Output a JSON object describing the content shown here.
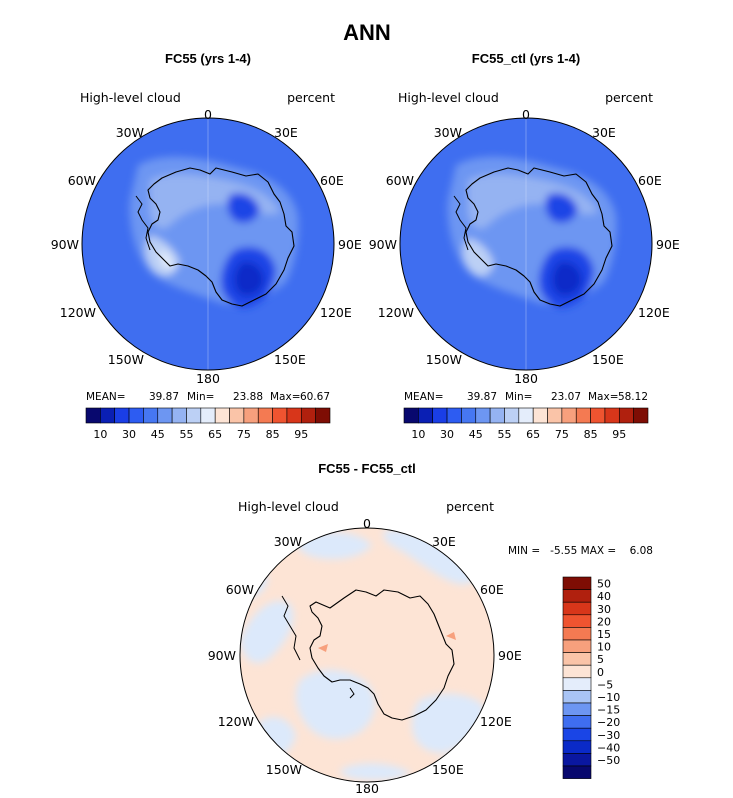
{
  "figure_title": "ANN",
  "chart_data": [
    {
      "type": "contour-map",
      "projection": "south-polar-stereographic",
      "title": "FC55 (yrs 1-4)",
      "left_label": "High-level cloud",
      "right_label": "percent",
      "longitude_labels": [
        "0",
        "30E",
        "60E",
        "90E",
        "120E",
        "150E",
        "180",
        "150W",
        "120W",
        "90W",
        "60W",
        "30W"
      ],
      "stats": {
        "mean_label": "MEAN=",
        "mean": "39.87",
        "min_label": "Min=",
        "min": "23.88",
        "max_label": "Max=",
        "max": "60.67"
      },
      "contour_levels": [
        10,
        20,
        25,
        30,
        35,
        40,
        45,
        50,
        55,
        60,
        65,
        70,
        75,
        80,
        85,
        90,
        95
      ],
      "colorbar_tick_labels": [
        "10",
        "30",
        "45",
        "55",
        "65",
        "75",
        "85",
        "95"
      ],
      "colorbar_colors": [
        "#08086e",
        "#0a1fb4",
        "#1a3ee6",
        "#2d5cf2",
        "#4677f2",
        "#6d96f2",
        "#95b3f2",
        "#bcd0f5",
        "#e4edfb",
        "#fde4d5",
        "#fac4a8",
        "#f7a07d",
        "#f47a52",
        "#ef5430",
        "#d8361a",
        "#b0200e",
        "#7e0d04"
      ]
    },
    {
      "type": "contour-map",
      "projection": "south-polar-stereographic",
      "title": "FC55_ctl (yrs 1-4)",
      "left_label": "High-level cloud",
      "right_label": "percent",
      "longitude_labels": [
        "0",
        "30E",
        "60E",
        "90E",
        "120E",
        "150E",
        "180",
        "150W",
        "120W",
        "90W",
        "60W",
        "30W"
      ],
      "stats": {
        "mean_label": "MEAN=",
        "mean": "39.87",
        "min_label": "Min=",
        "min": "23.07",
        "max_label": "Max=",
        "max": "58.12"
      },
      "contour_levels": [
        10,
        20,
        25,
        30,
        35,
        40,
        45,
        50,
        55,
        60,
        65,
        70,
        75,
        80,
        85,
        90,
        95
      ],
      "colorbar_tick_labels": [
        "10",
        "30",
        "45",
        "55",
        "65",
        "75",
        "85",
        "95"
      ],
      "colorbar_colors": [
        "#08086e",
        "#0a1fb4",
        "#1a3ee6",
        "#2d5cf2",
        "#4677f2",
        "#6d96f2",
        "#95b3f2",
        "#bcd0f5",
        "#e4edfb",
        "#fde4d5",
        "#fac4a8",
        "#f7a07d",
        "#f47a52",
        "#ef5430",
        "#d8361a",
        "#b0200e",
        "#7e0d04"
      ]
    },
    {
      "type": "contour-map",
      "projection": "south-polar-stereographic",
      "title": "FC55 - FC55_ctl",
      "left_label": "High-level cloud",
      "right_label": "percent",
      "longitude_labels": [
        "0",
        "30E",
        "60E",
        "90E",
        "120E",
        "150E",
        "180",
        "150W",
        "120W",
        "90W",
        "60W",
        "30W"
      ],
      "stats_text": "MIN =   -5.55 MAX =    6.08",
      "min": -5.55,
      "max": 6.08,
      "colorbar_tick_labels": [
        "50",
        "40",
        "30",
        "20",
        "15",
        "10",
        "5",
        "0",
        "−5",
        "−10",
        "−15",
        "−20",
        "−30",
        "−40",
        "−50"
      ],
      "colorbar_colors": [
        "#7e0d04",
        "#b0200e",
        "#d8361a",
        "#ef5430",
        "#f47a52",
        "#f7a07d",
        "#fac4a8",
        "#fde4d5",
        "#e4edfb",
        "#a9c4f5",
        "#6d96f2",
        "#3f6ef0",
        "#1a45e6",
        "#0a2ac8",
        "#0a17a0",
        "#08086e"
      ]
    }
  ]
}
